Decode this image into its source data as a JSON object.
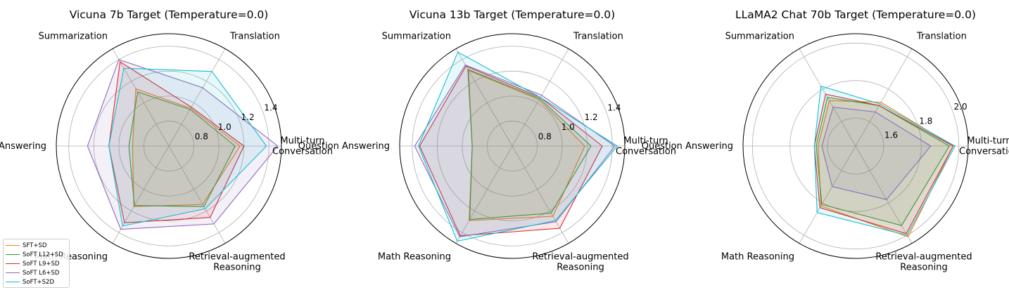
{
  "categories": [
    "Multi-turn\nConversation",
    "Translation",
    "Summarization",
    "Question Answering",
    "Math Reasoning",
    "Retrieval-augmented\nReasoning"
  ],
  "legend": [
    {
      "name": "SFT+SD",
      "color": "#ff7f0e"
    },
    {
      "name": "SoFT L12+SD",
      "color": "#2ca02c"
    },
    {
      "name": "SoFT L9+SD",
      "color": "#d62728"
    },
    {
      "name": "SoFT L6+SD",
      "color": "#9467bd"
    },
    {
      "name": "SoFT+S2D",
      "color": "#17becf"
    }
  ],
  "chart_data": [
    {
      "type": "radar",
      "title": "Vicuna 7b Target (Temperature=0.0)",
      "rlim": [
        0.6,
        1.5
      ],
      "rticks": [
        0.8,
        1.0,
        1.2,
        1.4
      ],
      "rtick_labels": [
        "0.8",
        "1.0",
        "1.2",
        "1.4"
      ],
      "series": [
        {
          "name": "SFT+SD",
          "values": [
            1.17,
            0.95,
            1.13,
            0.89,
            1.16,
            1.14
          ]
        },
        {
          "name": "SoFT L12+SD",
          "values": [
            1.13,
            0.94,
            1.1,
            0.92,
            1.15,
            1.16
          ]
        },
        {
          "name": "SoFT L9+SD",
          "values": [
            1.2,
            0.96,
            1.38,
            1.08,
            1.31,
            1.26
          ]
        },
        {
          "name": "SoFT L6+SD",
          "values": [
            1.47,
            1.14,
            1.4,
            1.25,
            1.37,
            1.32
          ]
        },
        {
          "name": "SoFT+S2D",
          "values": [
            1.38,
            1.29,
            1.32,
            1.08,
            1.34,
            1.18
          ]
        }
      ]
    },
    {
      "type": "radar",
      "title": "Vicuna 13b Target (Temperature=0.0)",
      "rlim": [
        0.6,
        1.5
      ],
      "rticks": [
        0.8,
        1.0,
        1.2,
        1.4
      ],
      "rtick_labels": [
        "0.8",
        "1.0",
        "1.2",
        "1.4"
      ],
      "series": [
        {
          "name": "SFT+SD",
          "values": [
            1.18,
            1.03,
            1.3,
            0.92,
            1.29,
            1.25
          ]
        },
        {
          "name": "SoFT L12+SD",
          "values": [
            1.23,
            1.04,
            1.31,
            0.92,
            1.28,
            1.22
          ]
        },
        {
          "name": "SoFT L9+SD",
          "values": [
            1.32,
            1.05,
            1.34,
            1.34,
            1.43,
            1.36
          ]
        },
        {
          "name": "SoFT L6+SD",
          "values": [
            1.42,
            1.07,
            1.35,
            1.38,
            1.44,
            1.3
          ]
        },
        {
          "name": "SoFT+S2D",
          "values": [
            1.44,
            1.05,
            1.47,
            1.35,
            1.48,
            1.29
          ]
        }
      ]
    },
    {
      "type": "radar",
      "title": "LLaMA2 Chat 70b Target (Temperature=0.0)",
      "rlim": [
        1.45,
        2.05
      ],
      "rticks": [
        1.6,
        1.8,
        2.0
      ],
      "rtick_labels": [
        "1.6",
        "1.8",
        "2.0"
      ],
      "series": [
        {
          "name": "SFT+SD",
          "values": [
            1.97,
            1.72,
            1.73,
            1.65,
            1.82,
            2.01
          ]
        },
        {
          "name": "SoFT L12+SD",
          "values": [
            1.95,
            1.7,
            1.75,
            1.66,
            1.81,
            1.94
          ]
        },
        {
          "name": "SoFT L9+SD",
          "values": [
            1.97,
            1.7,
            1.77,
            1.67,
            1.83,
            1.99
          ]
        },
        {
          "name": "SoFT L6+SD",
          "values": [
            1.85,
            1.66,
            1.69,
            1.63,
            1.7,
            1.78
          ]
        },
        {
          "name": "SoFT+S2D",
          "values": [
            1.98,
            1.71,
            1.82,
            1.67,
            1.86,
            2.0
          ]
        }
      ]
    }
  ]
}
